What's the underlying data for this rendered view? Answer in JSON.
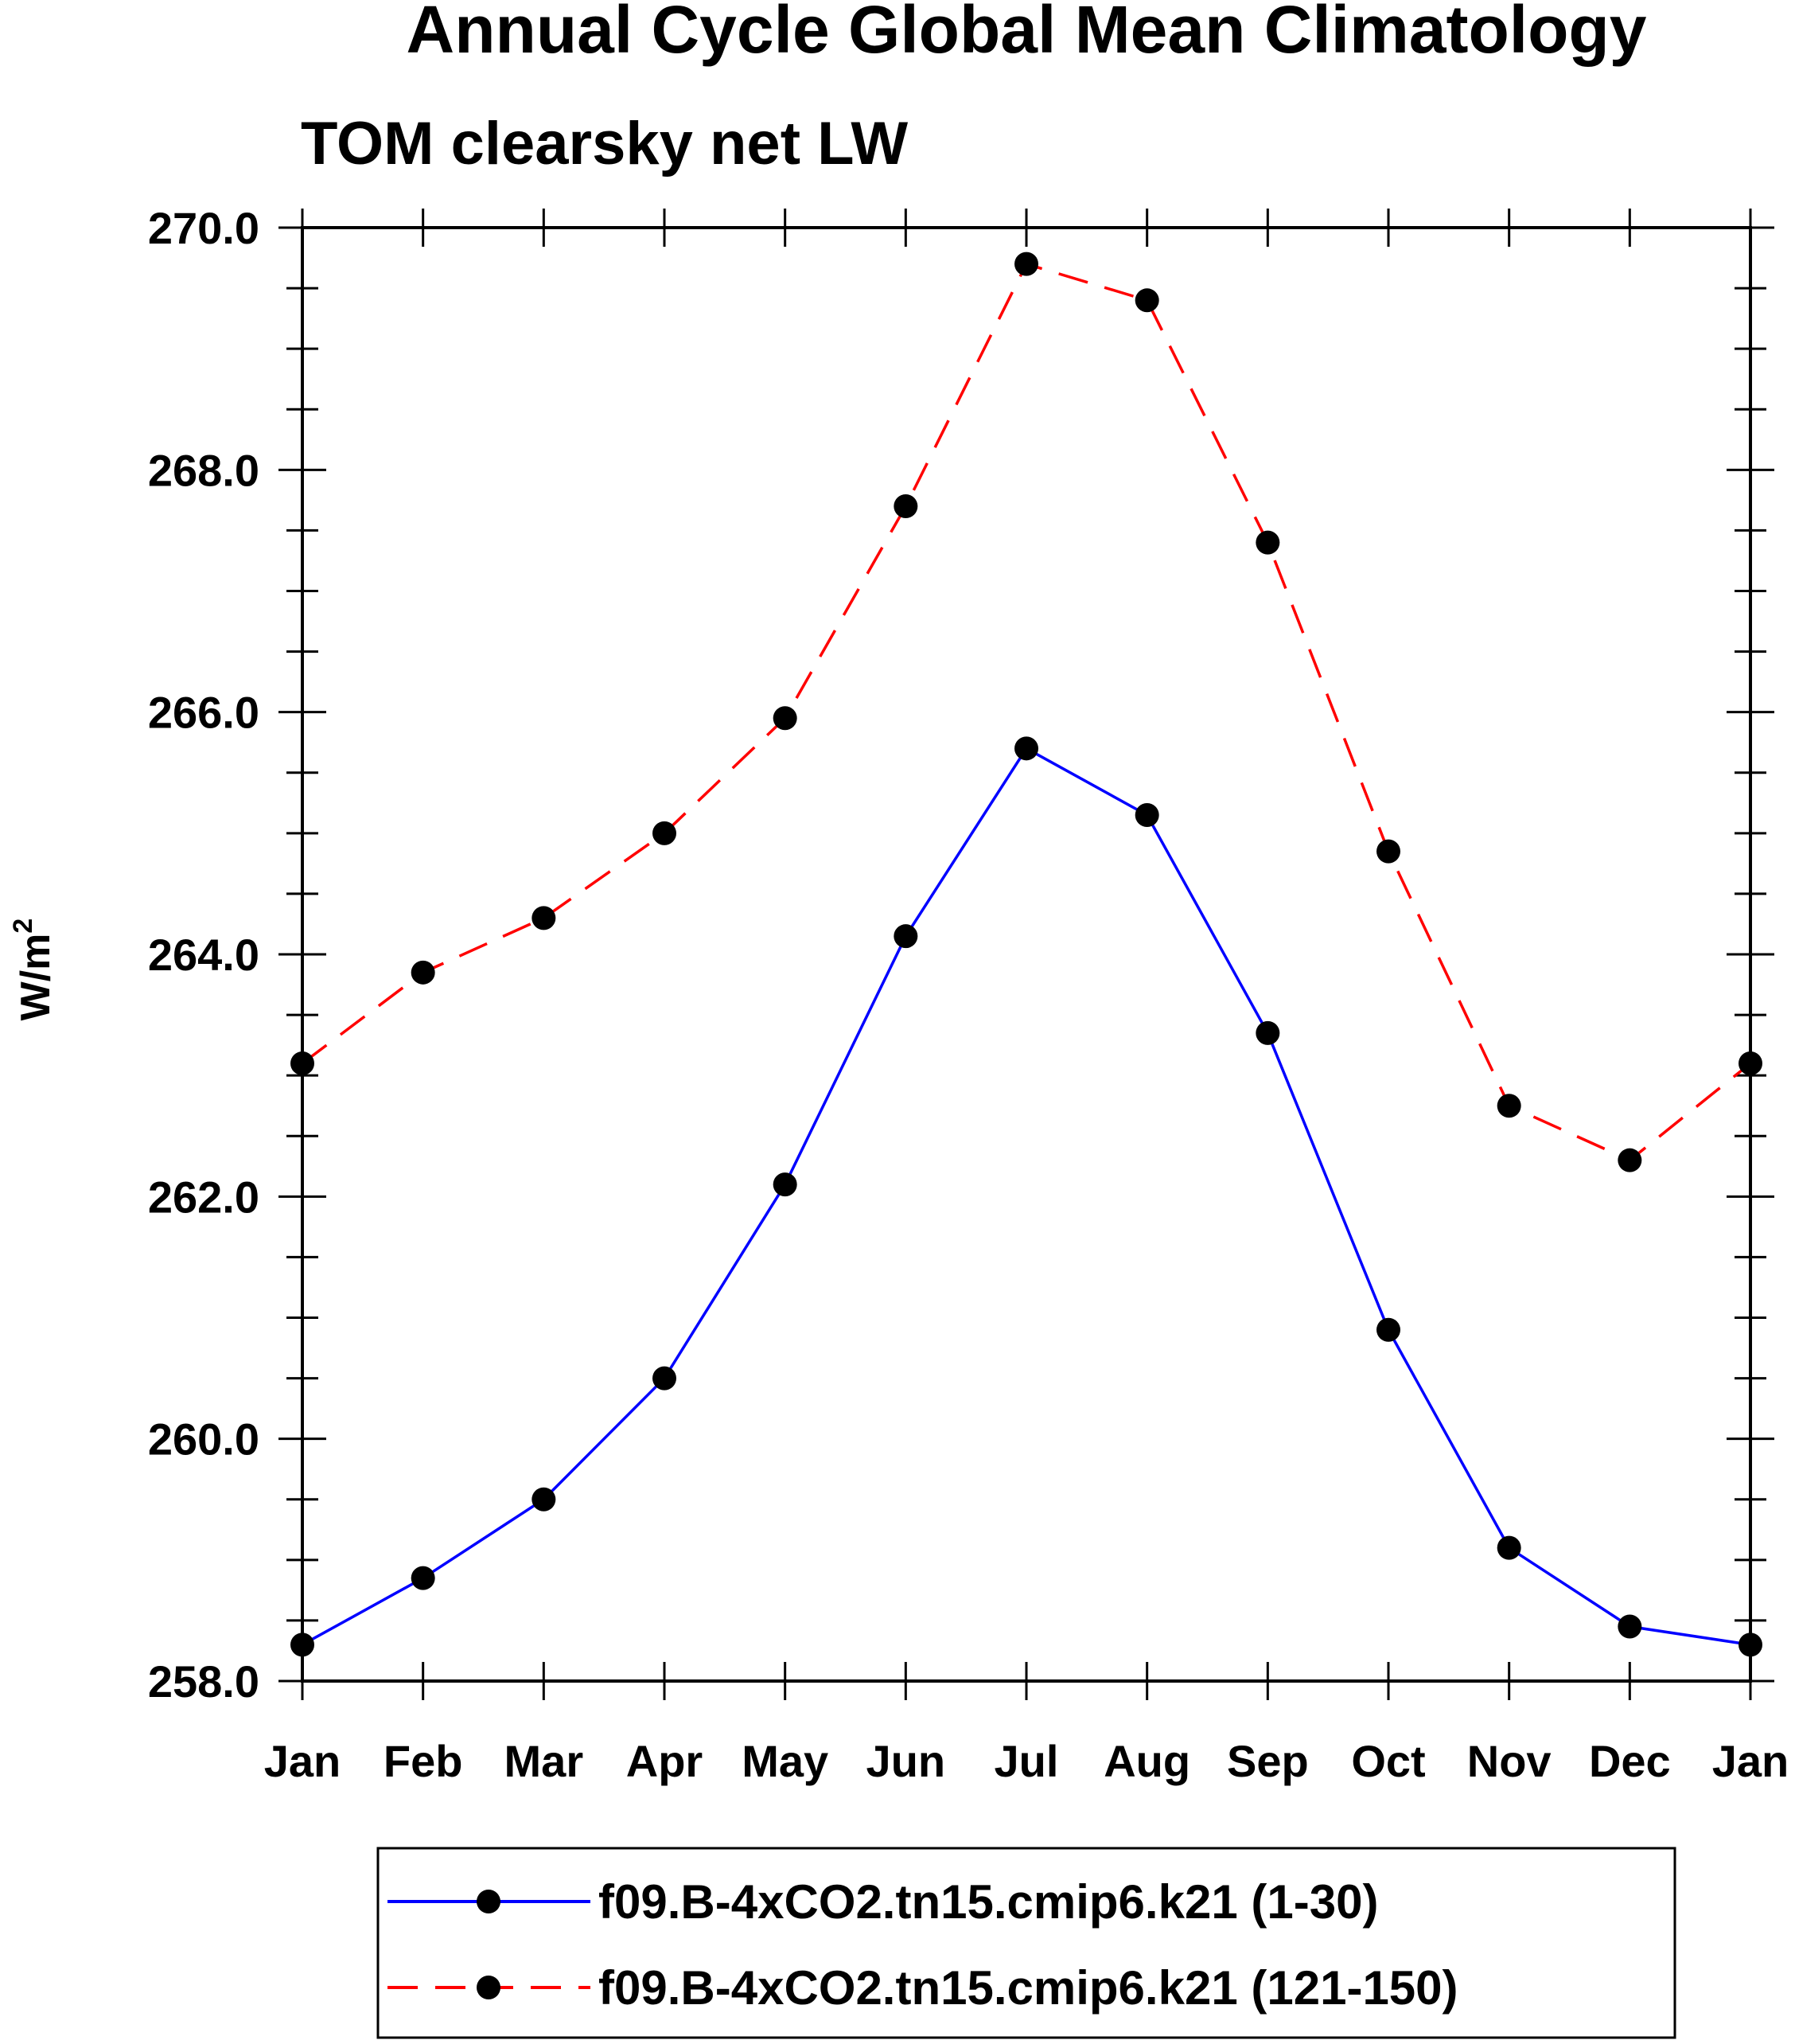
{
  "chart_data": {
    "type": "line",
    "title": "Annual Cycle Global Mean Climatology",
    "subtitle": "TOM clearsky net LW",
    "ylabel": "W/m",
    "ylabel_superscript": "2",
    "xlabel": "",
    "categories": [
      "Jan",
      "Feb",
      "Mar",
      "Apr",
      "May",
      "Jun",
      "Jul",
      "Aug",
      "Sep",
      "Oct",
      "Nov",
      "Dec",
      "Jan"
    ],
    "ylim": [
      258.0,
      270.0
    ],
    "y_ticks": [
      "258.0",
      "260.0",
      "262.0",
      "264.0",
      "266.0",
      "268.0",
      "270.0"
    ],
    "y_tick_values": [
      258,
      260,
      262,
      264,
      266,
      268,
      270
    ],
    "y_minor_step": 0.5,
    "legend_position": "bottom",
    "series": [
      {
        "name": "f09.B-4xCO2.tn15.cmip6.k21 (1-30)",
        "color": "#0000ff",
        "dash": "solid",
        "values": [
          258.3,
          258.85,
          259.5,
          260.5,
          262.1,
          264.15,
          265.7,
          265.15,
          263.35,
          260.9,
          259.1,
          258.45,
          258.3
        ]
      },
      {
        "name": "f09.B-4xCO2.tn15.cmip6.k21 (121-150)",
        "color": "#ff0000",
        "dash": "dashed",
        "values": [
          263.1,
          263.85,
          264.3,
          265.0,
          265.95,
          267.7,
          269.7,
          269.4,
          267.4,
          264.85,
          262.75,
          262.3,
          263.1
        ]
      }
    ],
    "marker_color": "#000000",
    "axis_color": "#000000"
  }
}
